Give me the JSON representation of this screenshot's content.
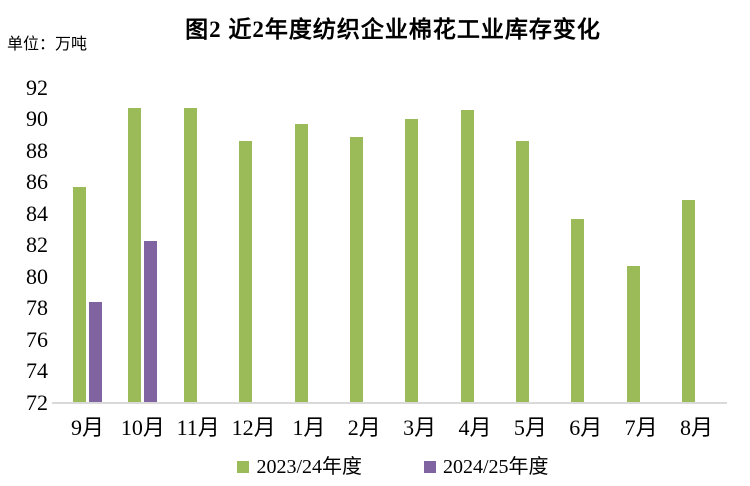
{
  "title": "图2 近2年度纺织企业棉花工业库存变化",
  "unit_label": "单位：万吨",
  "colors": {
    "series1": "#9BBB59",
    "series2": "#8064A2",
    "axis_line": "#D9D9D9",
    "text": "#000000",
    "background": "#FFFFFF"
  },
  "legend": {
    "items": [
      {
        "label": "2023/24年度",
        "color": "#9BBB59"
      },
      {
        "label": "2024/25年度",
        "color": "#8064A2"
      }
    ]
  },
  "chart_data": {
    "type": "bar",
    "title": "图2 近2年度纺织企业棉花工业库存变化",
    "unit": "万吨",
    "categories": [
      "9月",
      "10月",
      "11月",
      "12月",
      "1月",
      "2月",
      "3月",
      "4月",
      "5月",
      "6月",
      "7月",
      "8月"
    ],
    "series": [
      {
        "name": "2023/24年度",
        "color": "#9BBB59",
        "values": [
          85.7,
          90.7,
          90.7,
          88.6,
          89.7,
          88.9,
          90.0,
          90.6,
          88.6,
          83.7,
          80.7,
          84.9
        ]
      },
      {
        "name": "2024/25年度",
        "color": "#8064A2",
        "values": [
          78.4,
          82.3,
          null,
          null,
          null,
          null,
          null,
          null,
          null,
          null,
          null,
          null
        ]
      }
    ],
    "ylabel": "万吨",
    "xlabel": "",
    "ylim": [
      72,
      92
    ],
    "ytick_step": 2,
    "ytick_labels": [
      "72",
      "74",
      "76",
      "78",
      "80",
      "82",
      "84",
      "86",
      "88",
      "90",
      "92"
    ],
    "grid": false,
    "legend_position": "bottom"
  }
}
